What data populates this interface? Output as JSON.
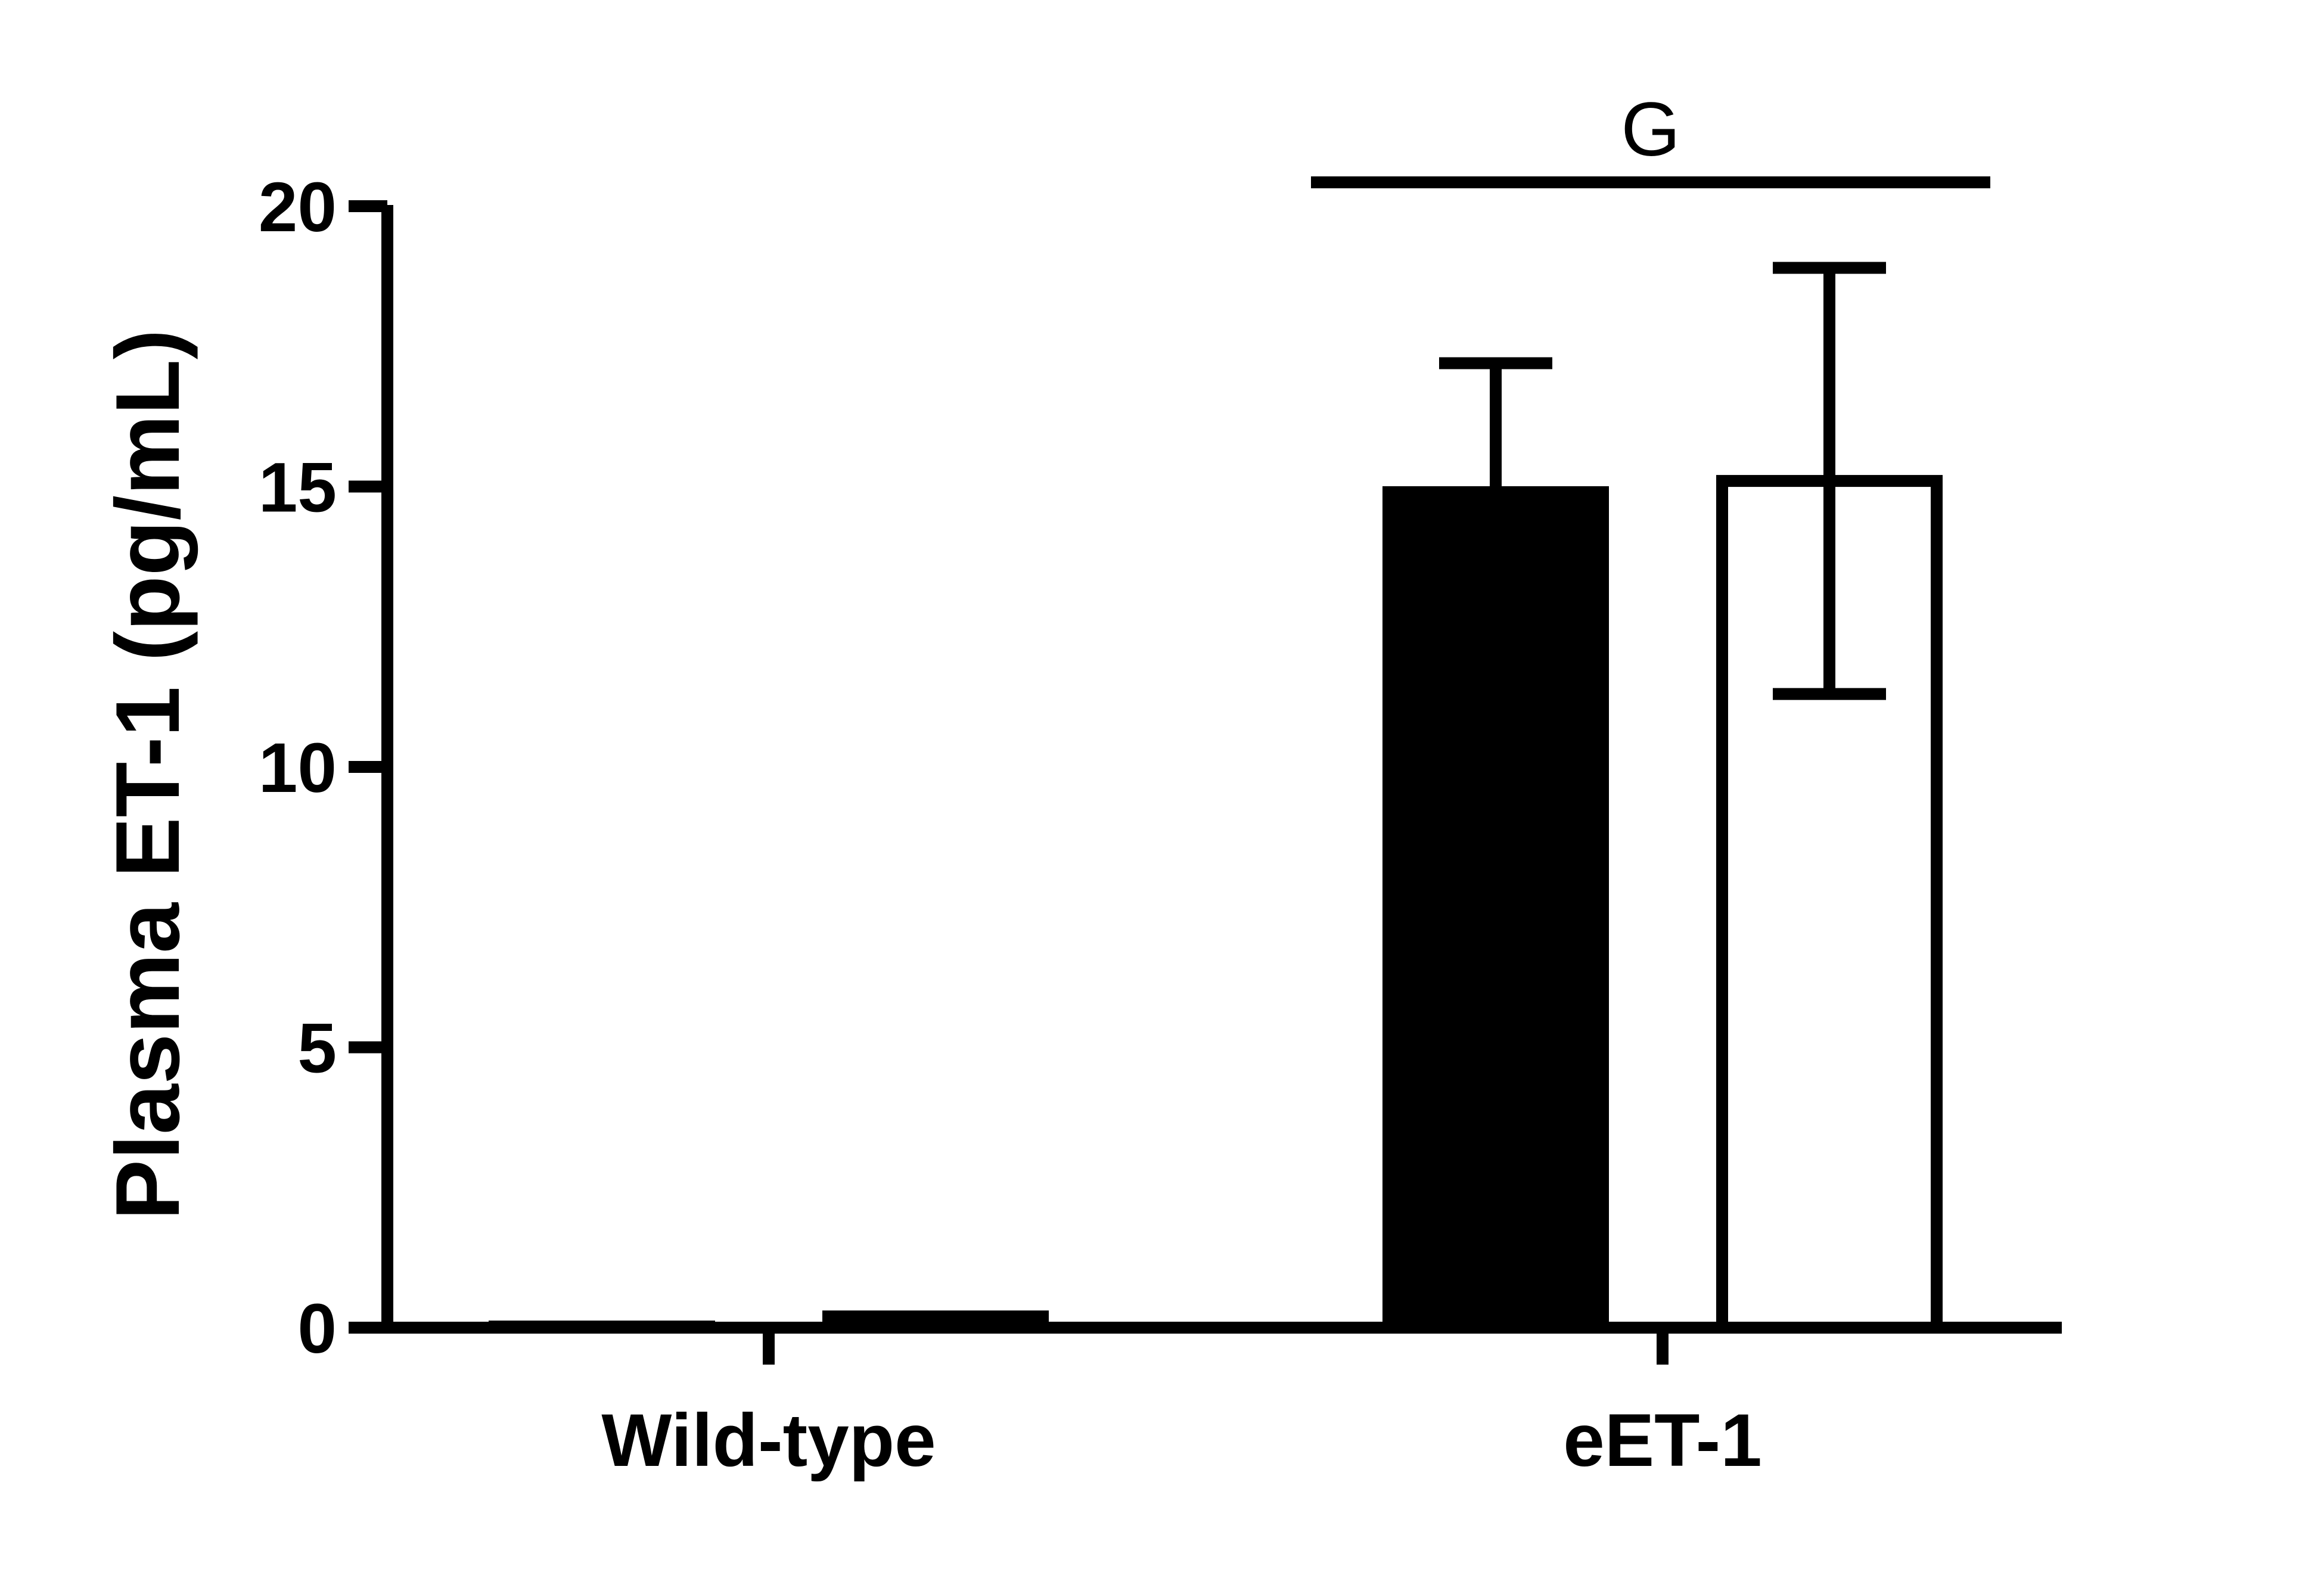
{
  "chart_data": {
    "type": "bar",
    "ylabel": "Plasma ET-1 (pg/mL)",
    "xlabel": "",
    "ylim": [
      0,
      20
    ],
    "yticks": [
      0,
      5,
      10,
      15,
      20
    ],
    "grid": false,
    "categories": [
      "Wild-type",
      "eET-1"
    ],
    "series": [
      {
        "fill": "#000000",
        "stroke": "#000000",
        "values": [
          0.02,
          14.9
        ],
        "errors": [
          0.0,
          2.3
        ]
      },
      {
        "fill": "#ffffff",
        "stroke": "#000000",
        "values": [
          0.2,
          15.1
        ],
        "errors": [
          0.0,
          3.8
        ]
      }
    ],
    "annotations": [
      {
        "text": "G",
        "category": "eET-1"
      }
    ]
  }
}
